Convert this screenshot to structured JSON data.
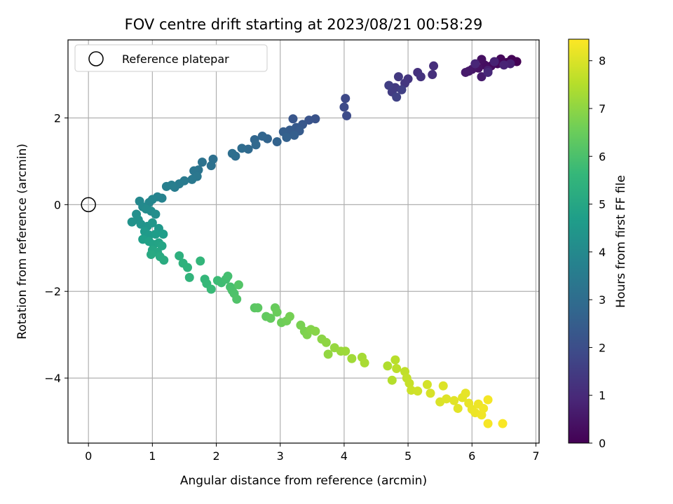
{
  "chart_data": {
    "type": "scatter",
    "title": "FOV centre drift starting at 2023/08/21 00:58:29",
    "xlabel": "Angular distance from reference (arcmin)",
    "ylabel": "Rotation from reference (arcmin)",
    "xlim": [
      -0.32,
      7.05
    ],
    "ylim": [
      -5.5,
      3.8
    ],
    "xticks": [
      0,
      1,
      2,
      3,
      4,
      5,
      6,
      7
    ],
    "yticks": [
      -4,
      -2,
      0,
      2
    ],
    "ytick_labels": [
      "−4",
      "−2",
      "0",
      "2"
    ],
    "grid": true,
    "legend": {
      "position": "top-left",
      "entries": [
        "Reference platepar"
      ]
    },
    "reference_point": {
      "x": 0,
      "y": 0
    },
    "colorbar": {
      "label": "Hours from first FF file",
      "range": [
        0,
        8.45
      ],
      "ticks": [
        0,
        1,
        2,
        3,
        4,
        5,
        6,
        7,
        8
      ],
      "colormap": "viridis",
      "stops": [
        "#440154",
        "#482878",
        "#3e4a89",
        "#31688e",
        "#26828e",
        "#1f9e89",
        "#35b779",
        "#6ece58",
        "#b5de2b",
        "#fde725"
      ]
    },
    "points": [
      {
        "x": 6.7,
        "y": 3.3,
        "t": 0.0
      },
      {
        "x": 6.62,
        "y": 3.35,
        "t": 0.05
      },
      {
        "x": 6.55,
        "y": 3.28,
        "t": 0.1
      },
      {
        "x": 6.45,
        "y": 3.36,
        "t": 0.15
      },
      {
        "x": 6.4,
        "y": 3.25,
        "t": 0.2
      },
      {
        "x": 6.3,
        "y": 3.2,
        "t": 0.25
      },
      {
        "x": 6.2,
        "y": 3.22,
        "t": 0.3
      },
      {
        "x": 6.15,
        "y": 3.35,
        "t": 0.35
      },
      {
        "x": 6.1,
        "y": 3.15,
        "t": 0.4
      },
      {
        "x": 6.05,
        "y": 3.18,
        "t": 0.45
      },
      {
        "x": 6.0,
        "y": 3.12,
        "t": 0.5
      },
      {
        "x": 5.95,
        "y": 3.08,
        "t": 0.55
      },
      {
        "x": 5.9,
        "y": 3.05,
        "t": 0.6
      },
      {
        "x": 6.15,
        "y": 2.95,
        "t": 0.65
      },
      {
        "x": 6.25,
        "y": 3.1,
        "t": 0.7
      },
      {
        "x": 6.6,
        "y": 3.25,
        "t": 0.75
      },
      {
        "x": 6.35,
        "y": 3.3,
        "t": 0.8
      },
      {
        "x": 6.5,
        "y": 3.22,
        "t": 0.85
      },
      {
        "x": 6.05,
        "y": 3.25,
        "t": 0.9
      },
      {
        "x": 6.25,
        "y": 3.05,
        "t": 0.95
      },
      {
        "x": 5.4,
        "y": 3.2,
        "t": 1.1
      },
      {
        "x": 5.38,
        "y": 3.0,
        "t": 1.15
      },
      {
        "x": 5.15,
        "y": 3.05,
        "t": 1.2
      },
      {
        "x": 5.2,
        "y": 2.95,
        "t": 1.25
      },
      {
        "x": 5.0,
        "y": 2.9,
        "t": 1.3
      },
      {
        "x": 4.95,
        "y": 2.8,
        "t": 1.35
      },
      {
        "x": 4.85,
        "y": 2.95,
        "t": 1.4
      },
      {
        "x": 4.8,
        "y": 2.7,
        "t": 1.45
      },
      {
        "x": 4.75,
        "y": 2.6,
        "t": 1.5
      },
      {
        "x": 4.7,
        "y": 2.75,
        "t": 1.55
      },
      {
        "x": 4.9,
        "y": 2.65,
        "t": 1.6
      },
      {
        "x": 4.82,
        "y": 2.48,
        "t": 1.65
      },
      {
        "x": 4.02,
        "y": 2.45,
        "t": 1.85
      },
      {
        "x": 4.0,
        "y": 2.25,
        "t": 1.9
      },
      {
        "x": 4.04,
        "y": 2.05,
        "t": 1.95
      },
      {
        "x": 3.55,
        "y": 1.98,
        "t": 2.15
      },
      {
        "x": 3.45,
        "y": 1.95,
        "t": 2.2
      },
      {
        "x": 3.2,
        "y": 1.98,
        "t": 2.25
      },
      {
        "x": 3.35,
        "y": 1.85,
        "t": 2.3
      },
      {
        "x": 3.25,
        "y": 1.78,
        "t": 2.35
      },
      {
        "x": 3.3,
        "y": 1.7,
        "t": 2.4
      },
      {
        "x": 3.15,
        "y": 1.72,
        "t": 2.45
      },
      {
        "x": 3.05,
        "y": 1.68,
        "t": 2.5
      },
      {
        "x": 3.22,
        "y": 1.6,
        "t": 2.55
      },
      {
        "x": 3.1,
        "y": 1.55,
        "t": 2.6
      },
      {
        "x": 2.95,
        "y": 1.45,
        "t": 2.65
      },
      {
        "x": 2.8,
        "y": 1.52,
        "t": 2.7
      },
      {
        "x": 2.72,
        "y": 1.58,
        "t": 2.75
      },
      {
        "x": 2.6,
        "y": 1.5,
        "t": 2.8
      },
      {
        "x": 2.62,
        "y": 1.38,
        "t": 2.85
      },
      {
        "x": 2.5,
        "y": 1.28,
        "t": 2.9
      },
      {
        "x": 2.4,
        "y": 1.3,
        "t": 2.95
      },
      {
        "x": 2.3,
        "y": 1.12,
        "t": 3.0
      },
      {
        "x": 2.25,
        "y": 1.18,
        "t": 3.05
      },
      {
        "x": 1.95,
        "y": 1.05,
        "t": 3.1
      },
      {
        "x": 1.92,
        "y": 0.9,
        "t": 3.15
      },
      {
        "x": 1.78,
        "y": 0.98,
        "t": 3.2
      },
      {
        "x": 1.72,
        "y": 0.8,
        "t": 3.25
      },
      {
        "x": 1.65,
        "y": 0.78,
        "t": 3.3
      },
      {
        "x": 1.7,
        "y": 0.65,
        "t": 3.35
      },
      {
        "x": 1.62,
        "y": 0.58,
        "t": 3.4
      },
      {
        "x": 1.5,
        "y": 0.55,
        "t": 3.45
      },
      {
        "x": 1.42,
        "y": 0.48,
        "t": 3.5
      },
      {
        "x": 1.35,
        "y": 0.4,
        "t": 3.55
      },
      {
        "x": 1.3,
        "y": 0.45,
        "t": 3.6
      },
      {
        "x": 1.22,
        "y": 0.42,
        "t": 3.65
      },
      {
        "x": 1.15,
        "y": 0.15,
        "t": 3.75
      },
      {
        "x": 1.08,
        "y": 0.18,
        "t": 3.8
      },
      {
        "x": 1.0,
        "y": 0.12,
        "t": 3.85
      },
      {
        "x": 0.95,
        "y": 0.05,
        "t": 3.9
      },
      {
        "x": 0.8,
        "y": 0.08,
        "t": 3.95
      },
      {
        "x": 0.85,
        "y": -0.05,
        "t": 4.0
      },
      {
        "x": 0.9,
        "y": -0.1,
        "t": 4.05
      },
      {
        "x": 0.98,
        "y": -0.15,
        "t": 4.1
      },
      {
        "x": 1.05,
        "y": -0.22,
        "t": 4.15
      },
      {
        "x": 0.75,
        "y": -0.22,
        "t": 4.2
      },
      {
        "x": 0.78,
        "y": -0.35,
        "t": 4.25
      },
      {
        "x": 0.68,
        "y": -0.4,
        "t": 4.3
      },
      {
        "x": 0.82,
        "y": -0.45,
        "t": 4.35
      },
      {
        "x": 0.92,
        "y": -0.5,
        "t": 4.4
      },
      {
        "x": 1.0,
        "y": -0.42,
        "t": 4.45
      },
      {
        "x": 1.1,
        "y": -0.55,
        "t": 4.5
      },
      {
        "x": 0.88,
        "y": -0.62,
        "t": 4.55
      },
      {
        "x": 0.95,
        "y": -0.7,
        "t": 4.6
      },
      {
        "x": 1.05,
        "y": -0.68,
        "t": 4.65
      },
      {
        "x": 1.17,
        "y": -0.68,
        "t": 4.7
      },
      {
        "x": 0.85,
        "y": -0.8,
        "t": 4.75
      },
      {
        "x": 0.95,
        "y": -0.85,
        "t": 4.8
      },
      {
        "x": 1.02,
        "y": -0.92,
        "t": 4.85
      },
      {
        "x": 1.1,
        "y": -0.88,
        "t": 4.9
      },
      {
        "x": 1.15,
        "y": -0.95,
        "t": 4.95
      },
      {
        "x": 1.0,
        "y": -1.05,
        "t": 5.0
      },
      {
        "x": 1.08,
        "y": -1.1,
        "t": 5.05
      },
      {
        "x": 0.98,
        "y": -1.15,
        "t": 5.1
      },
      {
        "x": 1.12,
        "y": -1.2,
        "t": 5.15
      },
      {
        "x": 1.18,
        "y": -1.28,
        "t": 5.2
      },
      {
        "x": 1.42,
        "y": -1.18,
        "t": 5.35
      },
      {
        "x": 1.48,
        "y": -1.35,
        "t": 5.4
      },
      {
        "x": 1.55,
        "y": -1.45,
        "t": 5.45
      },
      {
        "x": 1.58,
        "y": -1.68,
        "t": 5.5
      },
      {
        "x": 1.75,
        "y": -1.3,
        "t": 5.55
      },
      {
        "x": 1.82,
        "y": -1.72,
        "t": 5.6
      },
      {
        "x": 1.85,
        "y": -1.82,
        "t": 5.65
      },
      {
        "x": 1.92,
        "y": -1.95,
        "t": 5.7
      },
      {
        "x": 2.02,
        "y": -1.75,
        "t": 5.75
      },
      {
        "x": 2.08,
        "y": -1.8,
        "t": 5.8
      },
      {
        "x": 2.15,
        "y": -1.72,
        "t": 5.85
      },
      {
        "x": 2.18,
        "y": -1.65,
        "t": 5.9
      },
      {
        "x": 2.22,
        "y": -1.9,
        "t": 5.95
      },
      {
        "x": 2.25,
        "y": -1.98,
        "t": 6.0
      },
      {
        "x": 2.28,
        "y": -2.05,
        "t": 6.05
      },
      {
        "x": 2.32,
        "y": -2.18,
        "t": 6.1
      },
      {
        "x": 2.35,
        "y": -1.85,
        "t": 6.15
      },
      {
        "x": 2.6,
        "y": -2.38,
        "t": 6.25
      },
      {
        "x": 2.65,
        "y": -2.38,
        "t": 6.3
      },
      {
        "x": 2.78,
        "y": -2.58,
        "t": 6.35
      },
      {
        "x": 2.85,
        "y": -2.62,
        "t": 6.4
      },
      {
        "x": 2.92,
        "y": -2.38,
        "t": 6.45
      },
      {
        "x": 2.95,
        "y": -2.48,
        "t": 6.5
      },
      {
        "x": 3.02,
        "y": -2.72,
        "t": 6.55
      },
      {
        "x": 3.1,
        "y": -2.68,
        "t": 6.6
      },
      {
        "x": 3.15,
        "y": -2.58,
        "t": 6.65
      },
      {
        "x": 3.32,
        "y": -2.78,
        "t": 6.7
      },
      {
        "x": 3.38,
        "y": -2.92,
        "t": 6.75
      },
      {
        "x": 3.42,
        "y": -3.0,
        "t": 6.8
      },
      {
        "x": 3.48,
        "y": -2.88,
        "t": 6.85
      },
      {
        "x": 3.55,
        "y": -2.92,
        "t": 6.9
      },
      {
        "x": 3.65,
        "y": -3.1,
        "t": 6.95
      },
      {
        "x": 3.72,
        "y": -3.18,
        "t": 7.0
      },
      {
        "x": 3.75,
        "y": -3.45,
        "t": 7.05
      },
      {
        "x": 3.85,
        "y": -3.3,
        "t": 7.1
      },
      {
        "x": 3.95,
        "y": -3.38,
        "t": 7.15
      },
      {
        "x": 4.02,
        "y": -3.38,
        "t": 7.2
      },
      {
        "x": 4.12,
        "y": -3.55,
        "t": 7.25
      },
      {
        "x": 4.28,
        "y": -3.52,
        "t": 7.3
      },
      {
        "x": 4.32,
        "y": -3.65,
        "t": 7.35
      },
      {
        "x": 4.68,
        "y": -3.72,
        "t": 7.45
      },
      {
        "x": 4.75,
        "y": -4.05,
        "t": 7.5
      },
      {
        "x": 4.8,
        "y": -3.58,
        "t": 7.55
      },
      {
        "x": 4.82,
        "y": -3.78,
        "t": 7.6
      },
      {
        "x": 4.95,
        "y": -3.85,
        "t": 7.65
      },
      {
        "x": 4.98,
        "y": -4.0,
        "t": 7.7
      },
      {
        "x": 5.02,
        "y": -4.12,
        "t": 7.75
      },
      {
        "x": 5.05,
        "y": -4.28,
        "t": 7.8
      },
      {
        "x": 5.15,
        "y": -4.3,
        "t": 7.85
      },
      {
        "x": 5.3,
        "y": -4.15,
        "t": 7.9
      },
      {
        "x": 5.35,
        "y": -4.35,
        "t": 7.95
      },
      {
        "x": 5.5,
        "y": -4.55,
        "t": 8.0
      },
      {
        "x": 5.55,
        "y": -4.18,
        "t": 8.02
      },
      {
        "x": 5.6,
        "y": -4.48,
        "t": 8.05
      },
      {
        "x": 5.72,
        "y": -4.52,
        "t": 8.08
      },
      {
        "x": 5.78,
        "y": -4.7,
        "t": 8.1
      },
      {
        "x": 5.85,
        "y": -4.45,
        "t": 8.13
      },
      {
        "x": 5.9,
        "y": -4.35,
        "t": 8.15
      },
      {
        "x": 5.95,
        "y": -4.58,
        "t": 8.18
      },
      {
        "x": 6.0,
        "y": -4.72,
        "t": 8.2
      },
      {
        "x": 6.05,
        "y": -4.8,
        "t": 8.23
      },
      {
        "x": 6.1,
        "y": -4.6,
        "t": 8.25
      },
      {
        "x": 6.15,
        "y": -4.85,
        "t": 8.28
      },
      {
        "x": 6.18,
        "y": -4.7,
        "t": 8.3
      },
      {
        "x": 6.25,
        "y": -4.5,
        "t": 8.33
      },
      {
        "x": 6.25,
        "y": -5.05,
        "t": 8.36
      },
      {
        "x": 6.48,
        "y": -5.05,
        "t": 8.4
      }
    ]
  }
}
